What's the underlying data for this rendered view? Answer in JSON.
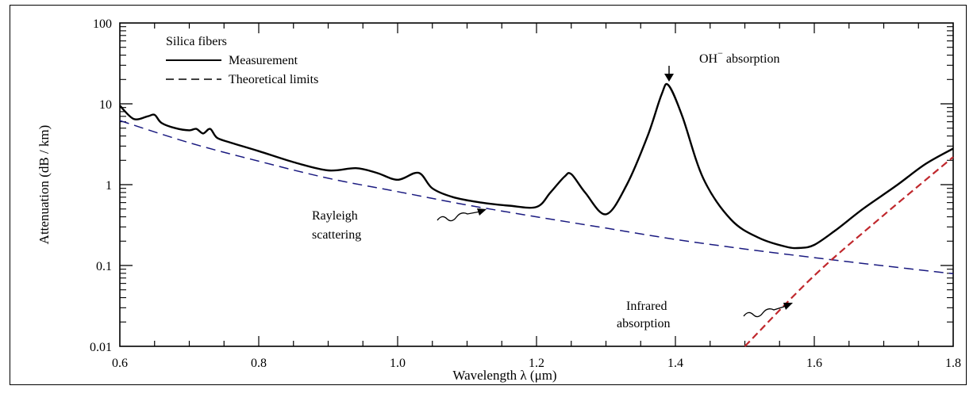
{
  "chart_data": {
    "type": "line",
    "xlabel": "Wavelength λ (μm)",
    "ylabel": "Attenuation (dB / km)",
    "xlim": [
      0.6,
      1.8
    ],
    "ylim": [
      0.01,
      100
    ],
    "yscale": "log",
    "x_ticks": [
      "0.6",
      "0.8",
      "1.0",
      "1.2",
      "1.4",
      "1.6",
      "1.8"
    ],
    "y_ticks": [
      "0.01",
      "0.1",
      "1",
      "10",
      "100"
    ],
    "legend": {
      "title": "Silica fibers",
      "placement": "top-left",
      "entries": [
        "Measurement",
        "Theoretical limits"
      ]
    },
    "series": [
      {
        "name": "Measurement",
        "style": "solid",
        "color": "#000000",
        "x": [
          0.6,
          0.62,
          0.64,
          0.65,
          0.66,
          0.68,
          0.7,
          0.71,
          0.72,
          0.73,
          0.74,
          0.76,
          0.8,
          0.85,
          0.9,
          0.94,
          0.97,
          1.0,
          1.03,
          1.05,
          1.08,
          1.12,
          1.16,
          1.2,
          1.22,
          1.24,
          1.25,
          1.27,
          1.3,
          1.33,
          1.36,
          1.38,
          1.39,
          1.41,
          1.44,
          1.48,
          1.52,
          1.56,
          1.58,
          1.6,
          1.63,
          1.67,
          1.72,
          1.76,
          1.8
        ],
        "y": [
          9.5,
          6.5,
          7.0,
          7.3,
          5.8,
          5.0,
          4.7,
          4.9,
          4.3,
          4.9,
          3.8,
          3.3,
          2.6,
          1.9,
          1.5,
          1.6,
          1.4,
          1.15,
          1.4,
          0.9,
          0.7,
          0.6,
          0.55,
          0.53,
          0.8,
          1.25,
          1.35,
          0.8,
          0.43,
          1.0,
          4.0,
          13.0,
          17.0,
          7.0,
          1.2,
          0.37,
          0.22,
          0.17,
          0.165,
          0.18,
          0.27,
          0.5,
          1.0,
          1.8,
          2.8
        ]
      },
      {
        "name": "Theoretical limits",
        "label": "Rayleigh scattering",
        "style": "dashed",
        "color": "#1a1a80",
        "x": [
          0.6,
          0.7,
          0.8,
          0.9,
          1.0,
          1.1,
          1.2,
          1.3,
          1.4,
          1.5,
          1.6,
          1.7,
          1.8
        ],
        "y": [
          6.2,
          3.3,
          1.95,
          1.2,
          0.82,
          0.56,
          0.4,
          0.29,
          0.21,
          0.16,
          0.125,
          0.099,
          0.079
        ]
      },
      {
        "name": "Theoretical limits",
        "label": "Infrared absorption",
        "style": "dashed",
        "color": "#c0282d",
        "x": [
          1.5,
          1.6,
          1.7,
          1.8
        ],
        "y": [
          0.01,
          0.075,
          0.42,
          2.2
        ]
      }
    ],
    "annotations": [
      {
        "text": "OH",
        "superscript": "−",
        "text_after": " absorption",
        "x": 1.385,
        "y": 17
      },
      {
        "text": "Rayleigh",
        "line2": "scattering",
        "x": 1.13,
        "y": 0.52
      },
      {
        "text": "Infrared",
        "line2": "absorption",
        "x": 1.565,
        "y": 0.033
      }
    ],
    "grid": false
  }
}
